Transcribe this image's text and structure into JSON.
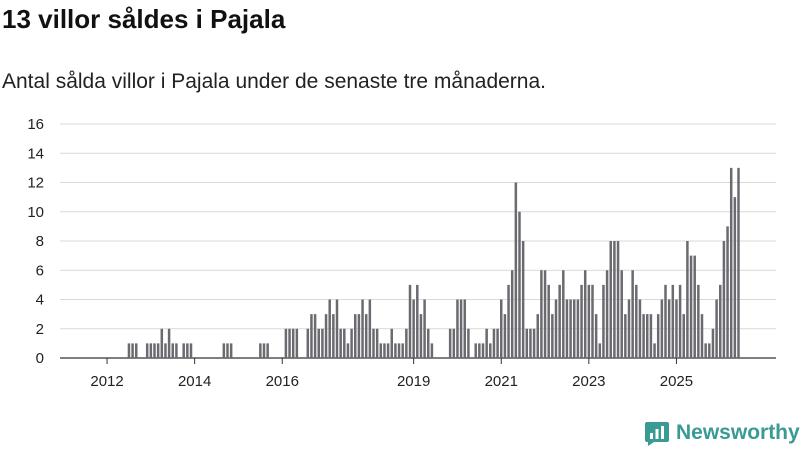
{
  "title": "13 villor såldes i Pajala",
  "subtitle": "Antal sålda villor i Pajala under de senaste tre månaderna.",
  "brand": {
    "name": "Newsworthy",
    "color": "#3a9a94"
  },
  "colors": {
    "bar": "#6b6a70",
    "highlight": "#26968f",
    "grid": "#d9d9d9"
  },
  "chart_data": {
    "type": "bar",
    "title": "13 villor såldes i Pajala",
    "xlabel": "",
    "ylabel": "",
    "ylim": [
      0,
      16
    ],
    "yticks": [
      0,
      2,
      4,
      6,
      8,
      10,
      12,
      14,
      16
    ],
    "start": "2011-01",
    "xticks": [
      {
        "label": "2012",
        "index": 12
      },
      {
        "label": "2014",
        "index": 36
      },
      {
        "label": "2016",
        "index": 60
      },
      {
        "label": "2019",
        "index": 96
      },
      {
        "label": "2021",
        "index": 120
      },
      {
        "label": "2023",
        "index": 144
      },
      {
        "label": "2025",
        "index": 168
      }
    ],
    "values": [
      0,
      0,
      0,
      0,
      0,
      0,
      0,
      0,
      0,
      0,
      0,
      0,
      0,
      0,
      0,
      0,
      0,
      0,
      1,
      1,
      1,
      0,
      0,
      1,
      1,
      1,
      1,
      2,
      1,
      2,
      1,
      1,
      0,
      1,
      1,
      1,
      0,
      0,
      0,
      0,
      0,
      0,
      0,
      0,
      1,
      1,
      1,
      0,
      0,
      0,
      0,
      0,
      0,
      0,
      1,
      1,
      1,
      0,
      0,
      0,
      0,
      2,
      2,
      2,
      2,
      0,
      0,
      2,
      3,
      3,
      2,
      2,
      3,
      4,
      3,
      4,
      2,
      2,
      1,
      2,
      3,
      3,
      4,
      3,
      4,
      2,
      2,
      1,
      1,
      1,
      2,
      1,
      1,
      1,
      2,
      5,
      4,
      5,
      3,
      4,
      2,
      1,
      0,
      0,
      0,
      0,
      2,
      2,
      4,
      4,
      4,
      2,
      0,
      1,
      1,
      1,
      2,
      1,
      2,
      2,
      4,
      3,
      5,
      6,
      12,
      10,
      8,
      2,
      2,
      2,
      3,
      6,
      6,
      5,
      3,
      4,
      5,
      6,
      4,
      4,
      4,
      4,
      5,
      6,
      5,
      5,
      3,
      1,
      5,
      6,
      8,
      8,
      8,
      6,
      3,
      4,
      6,
      5,
      4,
      3,
      3,
      3,
      1,
      3,
      4,
      5,
      4,
      5,
      4,
      5,
      3,
      8,
      7,
      7,
      5,
      3,
      1,
      1,
      2,
      4,
      5,
      8,
      9,
      13,
      11,
      13
    ],
    "highlight_index": 187,
    "annotation": "13"
  }
}
